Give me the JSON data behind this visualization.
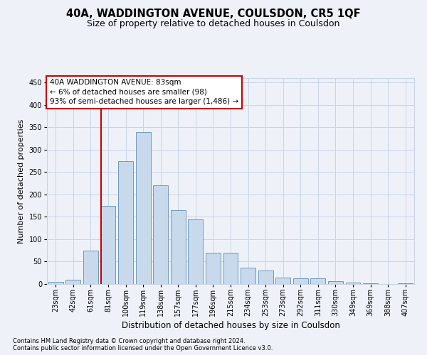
{
  "title": "40A, WADDINGTON AVENUE, COULSDON, CR5 1QF",
  "subtitle": "Size of property relative to detached houses in Coulsdon",
  "xlabel": "Distribution of detached houses by size in Coulsdon",
  "ylabel": "Number of detached properties",
  "categories": [
    "23sqm",
    "42sqm",
    "61sqm",
    "81sqm",
    "100sqm",
    "119sqm",
    "138sqm",
    "157sqm",
    "177sqm",
    "196sqm",
    "215sqm",
    "234sqm",
    "253sqm",
    "273sqm",
    "292sqm",
    "311sqm",
    "330sqm",
    "349sqm",
    "369sqm",
    "388sqm",
    "407sqm"
  ],
  "values": [
    5,
    10,
    75,
    175,
    275,
    340,
    220,
    165,
    145,
    70,
    70,
    37,
    30,
    15,
    12,
    13,
    7,
    3,
    1,
    0,
    1
  ],
  "bar_color": "#c9d9ec",
  "bar_edge_color": "#5b8db8",
  "grid_color": "#c8d4e8",
  "background_color": "#eef2f8",
  "vline_index": 3,
  "vline_color": "#cc0000",
  "annotation_line1": "40A WADDINGTON AVENUE: 83sqm",
  "annotation_line2": "← 6% of detached houses are smaller (98)",
  "annotation_line3": "93% of semi-detached houses are larger (1,486) →",
  "annotation_box_facecolor": "#ffffff",
  "annotation_box_edgecolor": "#cc0000",
  "ylim_max": 460,
  "yticks": [
    0,
    50,
    100,
    150,
    200,
    250,
    300,
    350,
    400,
    450
  ],
  "footer1": "Contains HM Land Registry data © Crown copyright and database right 2024.",
  "footer2": "Contains public sector information licensed under the Open Government Licence v3.0.",
  "title_fontsize": 10.5,
  "subtitle_fontsize": 9,
  "ylabel_fontsize": 8,
  "xlabel_fontsize": 8.5,
  "tick_fontsize": 7,
  "annotation_fontsize": 7.5,
  "footer_fontsize": 6
}
